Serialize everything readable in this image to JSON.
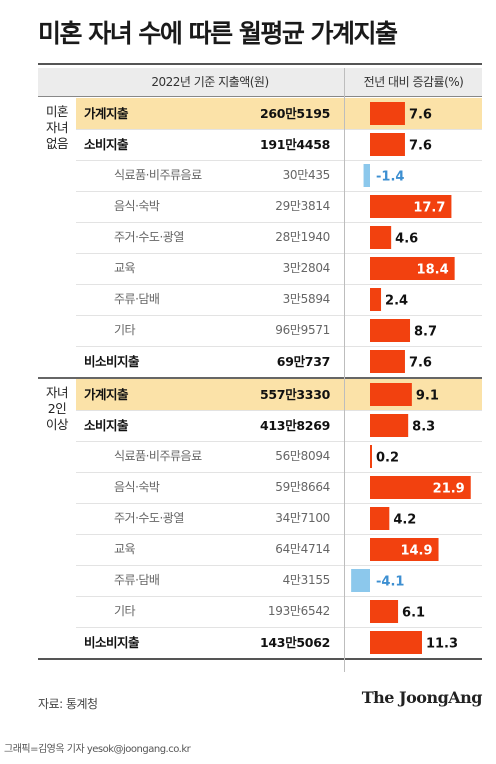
{
  "title": "미혼 자녀 수에 따른 월평균 가계지출",
  "header": {
    "amount_col": "2022년 기준 지출액(원)",
    "change_col": "전년 대비 증감률(%)"
  },
  "source": "자료: 통계청",
  "logo": "The JoongAng",
  "credit": "그래픽=김영옥 기자 yesok@joongang.co.kr",
  "colors": {
    "positive": "#f2410f",
    "negative": "#8cc8ec",
    "highlight": "#fbe2a8"
  },
  "chart_data": {
    "type": "bar",
    "orientation": "horizontal",
    "xlabel": "전년 대비 증감률(%)",
    "groups": [
      {
        "label": "미혼 자녀 없음",
        "rows": [
          {
            "category": "가계지출",
            "amount": "260만5195",
            "change": 7.6,
            "change_label": "7.6",
            "level": "main",
            "highlight": true
          },
          {
            "category": "소비지출",
            "amount": "191만4458",
            "change": 7.6,
            "change_label": "7.6",
            "level": "main",
            "highlight": false
          },
          {
            "category": "식료품·비주류음료",
            "amount": "30만435",
            "change": -1.4,
            "change_label": "-1.4",
            "level": "sub",
            "highlight": false
          },
          {
            "category": "음식·숙박",
            "amount": "29만3814",
            "change": 17.7,
            "change_label": "17.7",
            "level": "sub",
            "highlight": false
          },
          {
            "category": "주거·수도·광열",
            "amount": "28만1940",
            "change": 4.6,
            "change_label": "4.6",
            "level": "sub",
            "highlight": false
          },
          {
            "category": "교육",
            "amount": "3만2804",
            "change": 18.4,
            "change_label": "18.4",
            "level": "sub",
            "highlight": false
          },
          {
            "category": "주류·담배",
            "amount": "3만5894",
            "change": 2.4,
            "change_label": "2.4",
            "level": "sub",
            "highlight": false
          },
          {
            "category": "기타",
            "amount": "96만9571",
            "change": 8.7,
            "change_label": "8.7",
            "level": "sub",
            "highlight": false
          },
          {
            "category": "비소비지출",
            "amount": "69만737",
            "change": 7.6,
            "change_label": "7.6",
            "level": "main",
            "highlight": false
          }
        ]
      },
      {
        "label": "자녀 2인 이상",
        "rows": [
          {
            "category": "가계지출",
            "amount": "557만3330",
            "change": 9.1,
            "change_label": "9.1",
            "level": "main",
            "highlight": true
          },
          {
            "category": "소비지출",
            "amount": "413만8269",
            "change": 8.3,
            "change_label": "8.3",
            "level": "main",
            "highlight": false
          },
          {
            "category": "식료품·비주류음료",
            "amount": "56만8094",
            "change": 0.2,
            "change_label": "0.2",
            "level": "sub",
            "highlight": false
          },
          {
            "category": "음식·숙박",
            "amount": "59만8664",
            "change": 21.9,
            "change_label": "21.9",
            "level": "sub",
            "highlight": false
          },
          {
            "category": "주거·수도·광열",
            "amount": "34만7100",
            "change": 4.2,
            "change_label": "4.2",
            "level": "sub",
            "highlight": false
          },
          {
            "category": "교육",
            "amount": "64만4714",
            "change": 14.9,
            "change_label": "14.9",
            "level": "sub",
            "highlight": false
          },
          {
            "category": "주류·담배",
            "amount": "4만3155",
            "change": -4.1,
            "change_label": "-4.1",
            "level": "sub",
            "highlight": false
          },
          {
            "category": "기타",
            "amount": "193만6542",
            "change": 6.1,
            "change_label": "6.1",
            "level": "sub",
            "highlight": false
          },
          {
            "category": "비소비지출",
            "amount": "143만5062",
            "change": 11.3,
            "change_label": "11.3",
            "level": "main",
            "highlight": false
          }
        ]
      }
    ]
  }
}
